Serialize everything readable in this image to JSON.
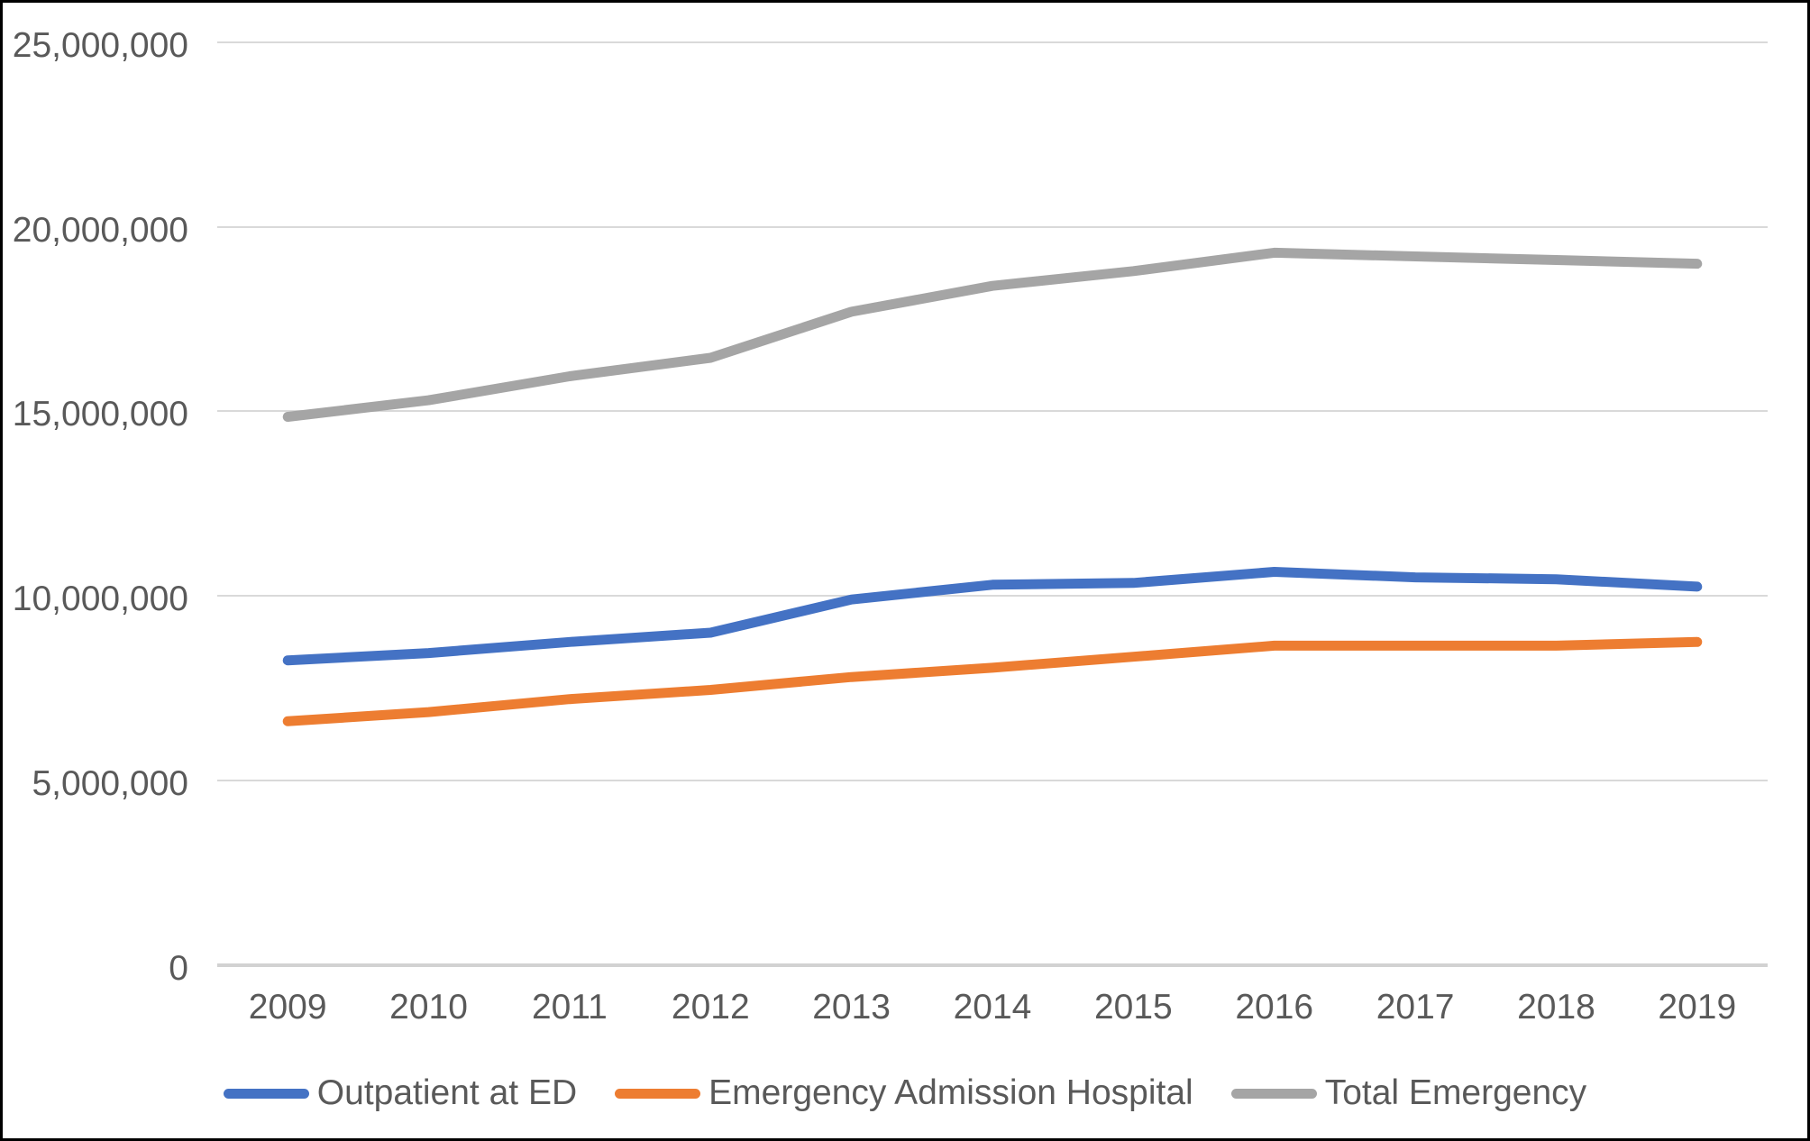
{
  "chart_data": {
    "type": "line",
    "title": "",
    "xlabel": "",
    "ylabel": "",
    "categories": [
      "2009",
      "2010",
      "2011",
      "2012",
      "2013",
      "2014",
      "2015",
      "2016",
      "2017",
      "2018",
      "2019"
    ],
    "series": [
      {
        "name": "Outpatient at ED",
        "color": "#4472C4",
        "values": [
          8250000,
          8450000,
          8750000,
          9000000,
          9900000,
          10300000,
          10350000,
          10650000,
          10500000,
          10450000,
          10250000
        ]
      },
      {
        "name": "Emergency Admission Hospital",
        "color": "#ED7D31",
        "values": [
          6600000,
          6850000,
          7200000,
          7450000,
          7800000,
          8050000,
          8350000,
          8650000,
          8650000,
          8650000,
          8750000
        ]
      },
      {
        "name": "Total Emergency",
        "color": "#A5A5A5",
        "values": [
          14850000,
          15300000,
          15950000,
          16450000,
          17700000,
          18400000,
          18800000,
          19300000,
          19200000,
          19100000,
          19000000
        ]
      }
    ],
    "ylim": [
      0,
      25000000
    ],
    "ytick_interval": 5000000,
    "yticks": [
      {
        "value": 25000000,
        "label": "25,000,000"
      },
      {
        "value": 20000000,
        "label": "20,000,000"
      },
      {
        "value": 15000000,
        "label": "15,000,000"
      },
      {
        "value": 10000000,
        "label": "10,000,000"
      },
      {
        "value": 5000000,
        "label": "5,000,000"
      },
      {
        "value": 0,
        "label": "0"
      }
    ],
    "grid": true,
    "legend_position": "bottom"
  },
  "styles": {
    "grid_color": "#D9D9D9",
    "zero_axis_color": "#D2D2D2",
    "label_color": "#595959",
    "background_color": "#FFFFFF",
    "border_color": "#000000"
  }
}
